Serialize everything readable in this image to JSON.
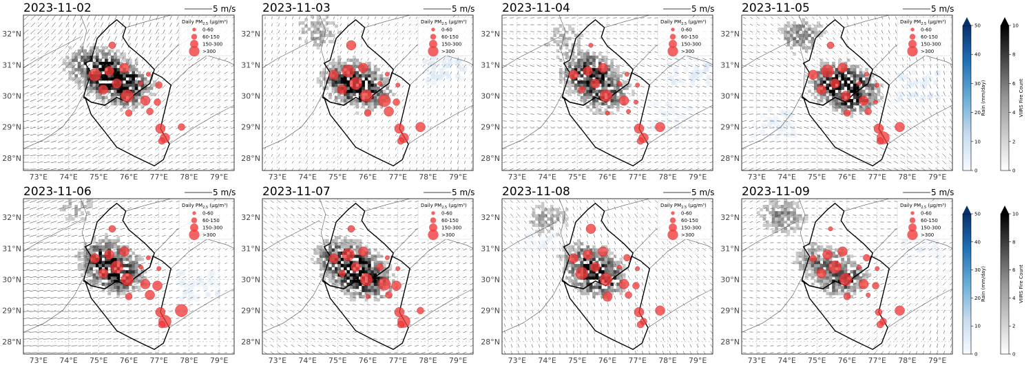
{
  "figure": {
    "extent": {
      "lon": [
        72.5,
        79.5
      ],
      "lat": [
        27.6,
        32.6
      ]
    },
    "lon_ticks": [
      "73°E",
      "74°E",
      "75°E",
      "76°E",
      "77°E",
      "78°E",
      "79°E"
    ],
    "lon_values": [
      73,
      74,
      75,
      76,
      77,
      78,
      79
    ],
    "lat_ticks": [
      "28°N",
      "29°N",
      "30°N",
      "31°N",
      "32°N"
    ],
    "lat_values": [
      28,
      29,
      30,
      31,
      32
    ],
    "wind_scale_label": "5 m/s",
    "legend": {
      "title": "Daily PM",
      "title_sub": "2.5",
      "title_unit": " (μg/m³)",
      "entries": [
        "0-60",
        "60-150",
        "150-300",
        ">300"
      ]
    },
    "colors": {
      "pm_marker": "#f03c3c",
      "rain_high": "#08306b",
      "fire_high": "#000000"
    }
  },
  "panels": [
    {
      "date": "2023-11-02"
    },
    {
      "date": "2023-11-03"
    },
    {
      "date": "2023-11-04"
    },
    {
      "date": "2023-11-05"
    },
    {
      "date": "2023-11-06"
    },
    {
      "date": "2023-11-07"
    },
    {
      "date": "2023-11-08"
    },
    {
      "date": "2023-11-09"
    }
  ],
  "colorbars": [
    {
      "label": "Rain (mm/day)",
      "ticks": [
        "0",
        "10",
        "20",
        "30",
        "40",
        "50"
      ],
      "colormap": "blues"
    },
    {
      "label": "VIIRS Fire Count",
      "ticks": [
        "0",
        "2",
        "4",
        "6",
        "8",
        "10"
      ],
      "colormap": "greys"
    }
  ],
  "pm_stations": [
    {
      "lon": 75.85,
      "lat": 30.9,
      "cat": 2
    },
    {
      "lon": 75.45,
      "lat": 31.63,
      "cat": 1
    },
    {
      "lon": 74.87,
      "lat": 30.68,
      "cat": 2
    },
    {
      "lon": 75.35,
      "lat": 30.8,
      "cat": 2
    },
    {
      "lon": 75.6,
      "lat": 30.4,
      "cat": 2
    },
    {
      "lon": 75.15,
      "lat": 30.2,
      "cat": 2
    },
    {
      "lon": 75.95,
      "lat": 30.0,
      "cat": 3
    },
    {
      "lon": 76.65,
      "lat": 30.7,
      "cat": 0
    },
    {
      "lon": 76.4,
      "lat": 30.4,
      "cat": 0
    },
    {
      "lon": 76.55,
      "lat": 29.85,
      "cat": 2
    },
    {
      "lon": 76.95,
      "lat": 29.8,
      "cat": 1
    },
    {
      "lon": 77.0,
      "lat": 30.35,
      "cat": 0
    },
    {
      "lon": 76.0,
      "lat": 29.45,
      "cat": 1
    },
    {
      "lon": 76.7,
      "lat": 29.5,
      "cat": 1
    },
    {
      "lon": 77.05,
      "lat": 28.95,
      "cat": 2
    },
    {
      "lon": 77.2,
      "lat": 28.65,
      "cat": 2
    },
    {
      "lon": 77.1,
      "lat": 28.55,
      "cat": 1
    },
    {
      "lon": 77.75,
      "lat": 29.0,
      "cat": 2
    }
  ]
}
